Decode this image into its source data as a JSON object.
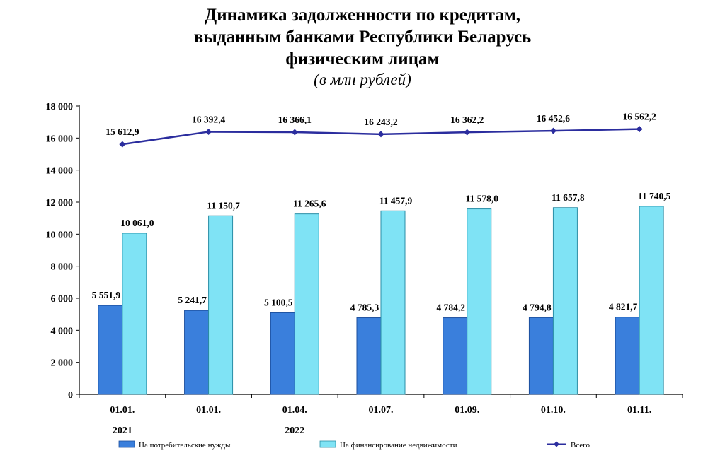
{
  "chart_data": {
    "type": "bar",
    "title_lines": [
      "Динамика задолженности по кредитам,",
      "выданным банками Республики Беларусь",
      "физическим лицам"
    ],
    "subtitle": "(в млн  рублей)",
    "categories": [
      "01.01.",
      "01.01.",
      "01.04.",
      "01.07.",
      "01.09.",
      "01.10.",
      "01.11."
    ],
    "year_labels": [
      {
        "index": 0,
        "label": "2021"
      },
      {
        "index": 2,
        "label": "2022"
      }
    ],
    "series": [
      {
        "name": "На потребительские нужды",
        "type": "bar",
        "color": "#3a7fdc",
        "values": [
          5551.9,
          5241.7,
          5100.5,
          4785.3,
          4784.2,
          4794.8,
          4821.7
        ],
        "labels": [
          "5 551,9",
          "5 241,7",
          "5 100,5",
          "4 785,3",
          "4 784,2",
          "4 794,8",
          "4 821,7"
        ]
      },
      {
        "name": "На финансирование недвижимости",
        "type": "bar",
        "color": "#7fe3f5",
        "values": [
          10061.0,
          11150.7,
          11265.6,
          11457.9,
          11578.0,
          11657.8,
          11740.5
        ],
        "labels": [
          "10 061,0",
          "11 150,7",
          "11 265,6",
          "11 457,9",
          "11 578,0",
          "11 657,8",
          "11 740,5"
        ]
      },
      {
        "name": "Всего",
        "type": "line",
        "color": "#2b2d9e",
        "values": [
          15612.9,
          16392.4,
          16366.1,
          16243.2,
          16362.2,
          16452.6,
          16562.2
        ],
        "labels": [
          "15 612,9",
          "16 392,4",
          "16 366,1",
          "16 243,2",
          "16 362,2",
          "16 452,6",
          "16 562,2"
        ]
      }
    ],
    "ylim": [
      0,
      18000
    ],
    "yticks": [
      0,
      2000,
      4000,
      6000,
      8000,
      10000,
      12000,
      14000,
      16000,
      18000
    ],
    "ytick_labels": [
      "0",
      "2 000",
      "4 000",
      "6 000",
      "8 000",
      "10 000",
      "12 000",
      "14 000",
      "16 000",
      "18 000"
    ],
    "grid": false,
    "legend_position": "bottom"
  }
}
